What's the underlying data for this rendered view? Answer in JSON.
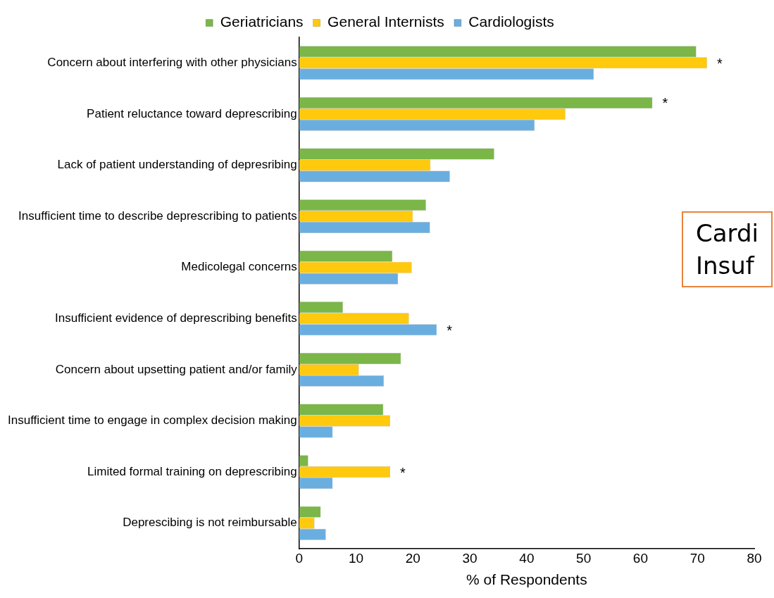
{
  "chart_data": {
    "type": "bar",
    "orientation": "horizontal",
    "xlabel": "% of Respondents",
    "categories": [
      "Concern about interfering with other physicians",
      "Patient reluctance toward deprescribing",
      "Lack of patient understanding of depresribing",
      "Insufficient time to describe deprescribing to patients",
      "Medicolegal concerns",
      "Insufficient evidence of deprescribing benefits",
      "Concern about upsetting patient and/or family",
      "Insufficient time to engage in complex decision making",
      "Limited formal training on deprescribing",
      "Deprescibing is not reimbursable"
    ],
    "series": [
      {
        "name": "Geriatricians",
        "color": "#7ab648",
        "values": [
          69.8,
          62.1,
          34.3,
          22.3,
          16.4,
          7.7,
          17.9,
          14.8,
          1.6,
          3.8
        ],
        "value_labels": [
          null,
          "*",
          null,
          null,
          null,
          null,
          null,
          null,
          null,
          null
        ]
      },
      {
        "name": "General Internists",
        "color": "#ffc90e",
        "values": [
          71.7,
          46.8,
          23.1,
          20.0,
          19.8,
          19.3,
          10.5,
          16.0,
          16.0,
          2.7
        ],
        "value_labels": [
          "*",
          null,
          null,
          null,
          null,
          null,
          null,
          null,
          "*",
          null
        ]
      },
      {
        "name": "Cardiologists",
        "color": "#6aaee0",
        "values": [
          51.8,
          41.4,
          26.5,
          23.0,
          17.4,
          24.2,
          14.9,
          5.9,
          5.9,
          4.7
        ],
        "value_labels": [
          null,
          null,
          null,
          null,
          null,
          "*",
          null,
          null,
          null,
          null
        ]
      }
    ],
    "xlim": [
      0,
      80
    ],
    "xticks": [
      0,
      10,
      20,
      30,
      40,
      50,
      60,
      70,
      80
    ],
    "grid": false,
    "legend": "top",
    "annotations": [
      "Cardi",
      "Insuf"
    ]
  }
}
